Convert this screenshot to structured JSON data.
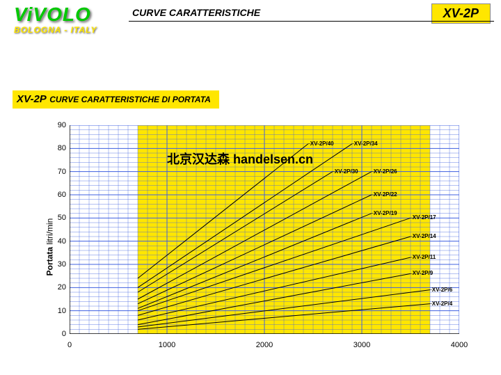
{
  "brand": {
    "name": "ViVOLO",
    "location": "BOLOGNA - ITALY",
    "name_color": "#00c800",
    "location_color": "#ffe600"
  },
  "header": {
    "title": "CURVE CARATTERISTICHE",
    "code": "XV-2P",
    "code_bg": "#ffe600"
  },
  "section": {
    "code": "XV-2P",
    "title": "CURVE CARATTERISTICHE DI PORTATA",
    "bg": "#ffe600"
  },
  "watermark": "北京汉达森 handelsen.cn",
  "chart": {
    "type": "line",
    "ylabel_bold": "Portata",
    "ylabel_unit": "litri/min",
    "label_fontsize": 12,
    "xlim": [
      0,
      4000
    ],
    "ylim": [
      0,
      90
    ],
    "xtick_step": 1000,
    "ytick_step": 10,
    "background_color": "#ffe600",
    "grid_color": "#4060e0",
    "axis_color": "#000000",
    "line_color": "#000000",
    "line_width": 1,
    "label_fontsize_series": 8,
    "series": [
      {
        "label": "XV-2P/4",
        "x0": 700,
        "y0": 2,
        "x1": 3700,
        "y1": 13,
        "lx": 3720,
        "ly": 13
      },
      {
        "label": "XV-2P/6",
        "x0": 700,
        "y0": 3,
        "x1": 3700,
        "y1": 19,
        "lx": 3720,
        "ly": 19
      },
      {
        "label": "XV-2P/9",
        "x0": 700,
        "y0": 4,
        "x1": 3500,
        "y1": 26,
        "lx": 3520,
        "ly": 26
      },
      {
        "label": "XV-2P/11",
        "x0": 700,
        "y0": 6,
        "x1": 3500,
        "y1": 33,
        "lx": 3520,
        "ly": 33
      },
      {
        "label": "XV-2P/14",
        "x0": 700,
        "y0": 8,
        "x1": 3500,
        "y1": 42,
        "lx": 3520,
        "ly": 42
      },
      {
        "label": "XV-2P/17",
        "x0": 700,
        "y0": 10,
        "x1": 3500,
        "y1": 50,
        "lx": 3520,
        "ly": 50
      },
      {
        "label": "XV-2P/19",
        "x0": 700,
        "y0": 11,
        "x1": 3100,
        "y1": 52,
        "lx": 3120,
        "ly": 52
      },
      {
        "label": "XV-2P/22",
        "x0": 700,
        "y0": 13,
        "x1": 3100,
        "y1": 60,
        "lx": 3120,
        "ly": 60
      },
      {
        "label": "XV-2P/26",
        "x0": 700,
        "y0": 15,
        "x1": 3100,
        "y1": 70,
        "lx": 3120,
        "ly": 70
      },
      {
        "label": "XV-2P/30",
        "x0": 700,
        "y0": 18,
        "x1": 2700,
        "y1": 70,
        "lx": 2720,
        "ly": 70
      },
      {
        "label": "XV-2P/34",
        "x0": 700,
        "y0": 20,
        "x1": 2900,
        "y1": 82,
        "lx": 2920,
        "ly": 82
      },
      {
        "label": "XV-2P/40",
        "x0": 700,
        "y0": 24,
        "x1": 2450,
        "y1": 82,
        "lx": 2470,
        "ly": 82
      }
    ]
  }
}
